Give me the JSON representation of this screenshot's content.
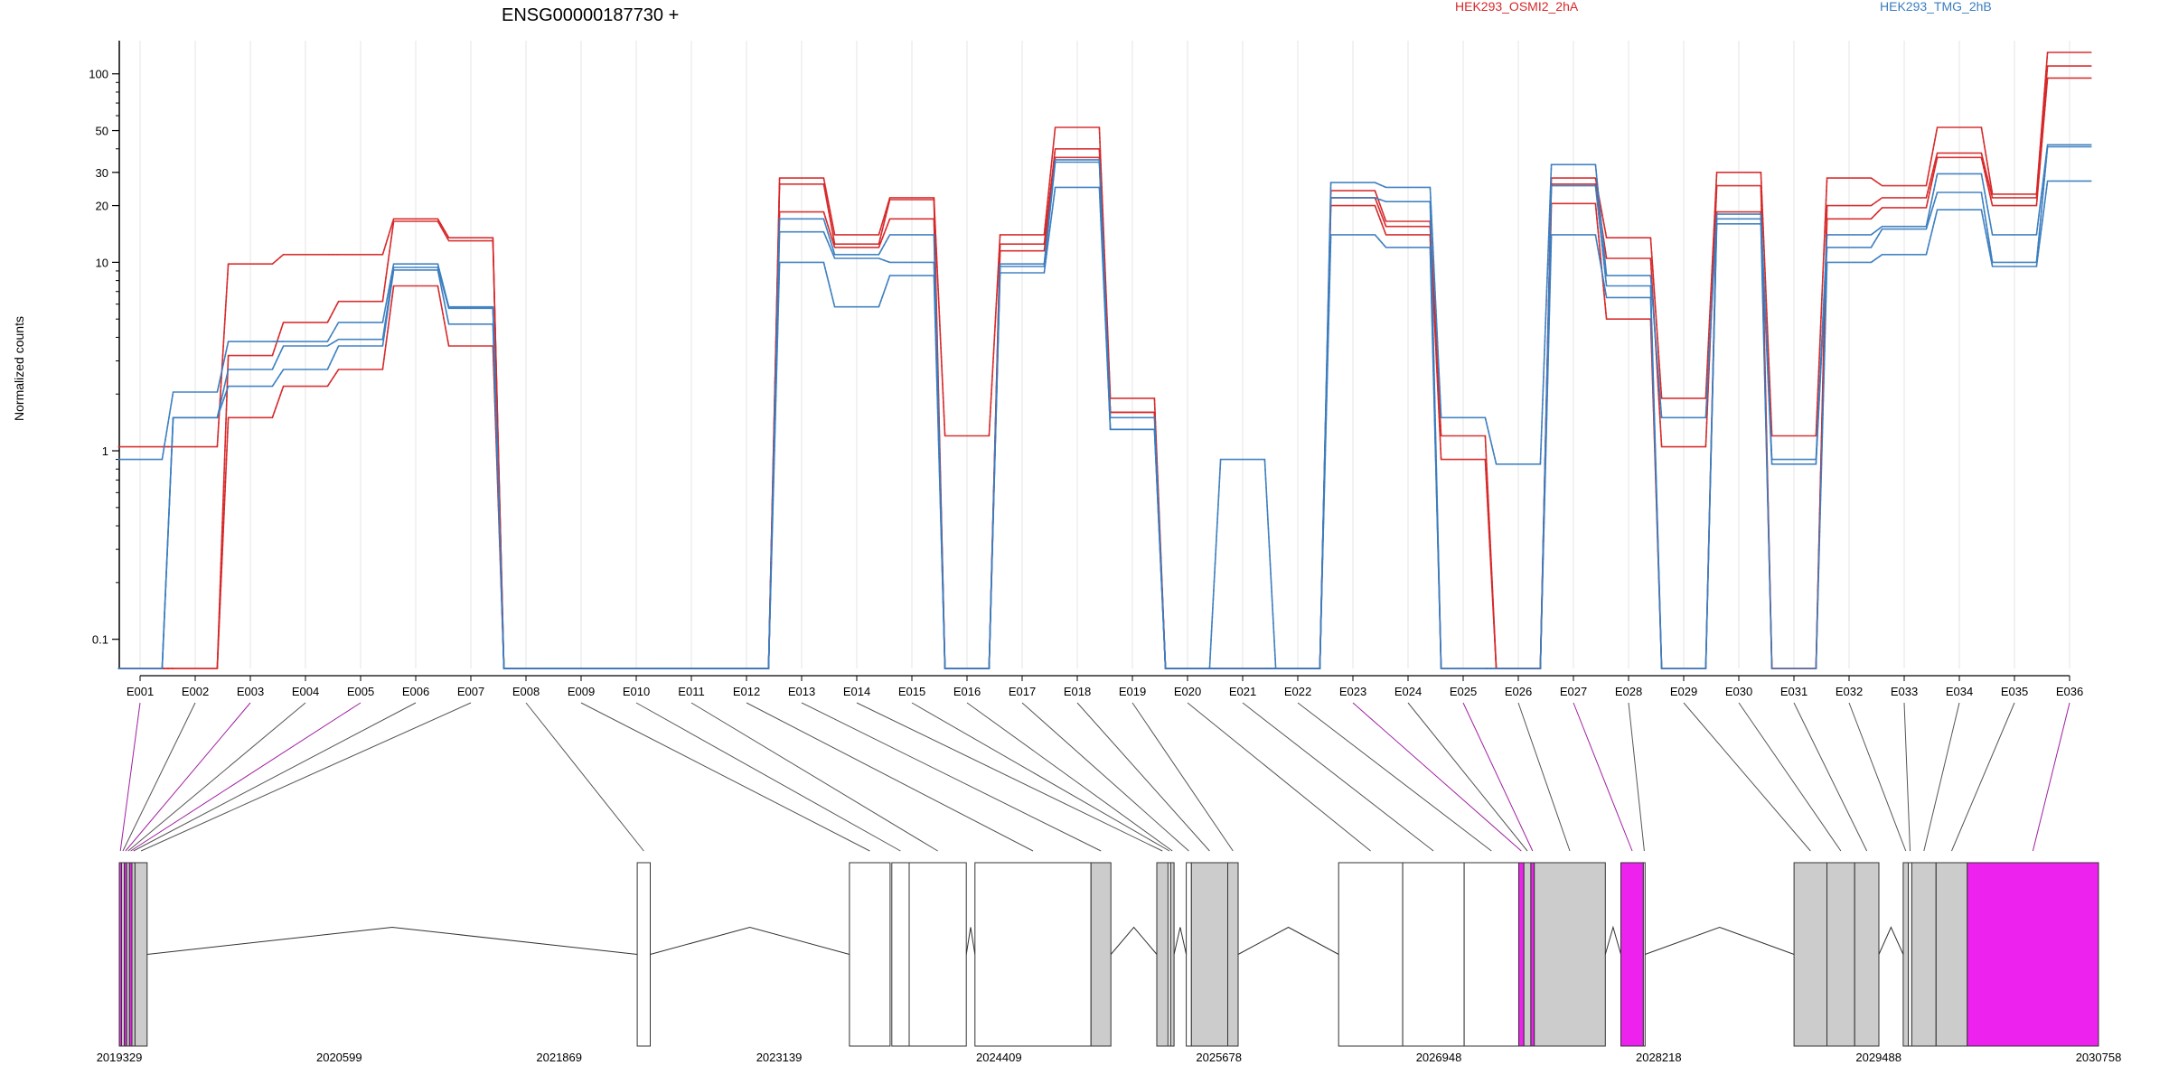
{
  "chart_data": {
    "type": "line",
    "title": "ENSG00000187730 +",
    "ylabel": "Normalized counts",
    "yscale": "log",
    "ylim": [
      0.07,
      150
    ],
    "yticks": [
      {
        "v": 0.1,
        "label": "0.1"
      },
      {
        "v": 1,
        "label": "1"
      },
      {
        "v": 10,
        "label": "10"
      },
      {
        "v": 20,
        "label": "20"
      },
      {
        "v": 30,
        "label": "30"
      },
      {
        "v": 50,
        "label": "50"
      },
      {
        "v": 100,
        "label": "100"
      }
    ],
    "categories": [
      "E001",
      "E002",
      "E003",
      "E004",
      "E005",
      "E006",
      "E007",
      "E008",
      "E009",
      "E010",
      "E011",
      "E012",
      "E013",
      "E014",
      "E015",
      "E016",
      "E017",
      "E018",
      "E019",
      "E020",
      "E021",
      "E022",
      "E023",
      "E024",
      "E025",
      "E026",
      "E027",
      "E028",
      "E029",
      "E030",
      "E031",
      "E032",
      "E033",
      "E034",
      "E035",
      "E036"
    ],
    "colors": {
      "HEK293_OSMI2_2hA": "#d62728",
      "HEK293_TMG_2hB": "#3b7dbf"
    },
    "legend": [
      "HEK293_OSMI2_2hA",
      "HEK293_TMG_2hB"
    ],
    "series": [
      {
        "group": "HEK293_OSMI2_2hA",
        "values": [
          1.05,
          1.05,
          9.8,
          11,
          11,
          17,
          13.5,
          0.07,
          0.07,
          0.07,
          0.07,
          0.07,
          28,
          14,
          22,
          1.2,
          14,
          52,
          1.9,
          0.07,
          0.07,
          0.07,
          24,
          16.5,
          1.2,
          0.07,
          28,
          13.5,
          1.9,
          30,
          1.2,
          28,
          25.5,
          52,
          23,
          130
        ]
      },
      {
        "group": "HEK293_OSMI2_2hA",
        "values": [
          0.07,
          0.07,
          3.2,
          4.8,
          6.2,
          16.5,
          13,
          0.07,
          0.07,
          0.07,
          0.07,
          0.07,
          26,
          12.5,
          21.5,
          0.07,
          12.5,
          40,
          1.6,
          0.07,
          0.07,
          0.07,
          22,
          15.5,
          0.9,
          0.07,
          26,
          10.5,
          1.05,
          25.5,
          0.07,
          20,
          22,
          38,
          22,
          110
        ]
      },
      {
        "group": "HEK293_OSMI2_2hA",
        "values": [
          0.07,
          0.07,
          1.5,
          2.2,
          2.7,
          7.5,
          3.6,
          0.07,
          0.07,
          0.07,
          0.07,
          0.07,
          18.5,
          12,
          17,
          0.07,
          11.5,
          36,
          1.6,
          0.07,
          0.07,
          0.07,
          20,
          14,
          0.07,
          0.07,
          20.5,
          5,
          0.07,
          18.5,
          0.07,
          17,
          19.5,
          36,
          20,
          95
        ]
      },
      {
        "group": "HEK293_TMG_2hB",
        "values": [
          0.9,
          2.05,
          3.8,
          3.8,
          4.8,
          9.8,
          5.8,
          0.07,
          0.07,
          0.07,
          0.07,
          0.07,
          17,
          11,
          14,
          0.07,
          9.8,
          35,
          1.5,
          0.07,
          0.9,
          0.07,
          26.5,
          25,
          1.5,
          0.85,
          33,
          8.5,
          1.5,
          18,
          0.9,
          14,
          15.5,
          29.5,
          14,
          42
        ]
      },
      {
        "group": "HEK293_TMG_2hB",
        "values": [
          0.07,
          1.5,
          2.7,
          3.6,
          3.9,
          9.4,
          5.7,
          0.07,
          0.07,
          0.07,
          0.07,
          0.07,
          14.5,
          10.5,
          10,
          0.07,
          9.5,
          34,
          1.3,
          0.07,
          0.07,
          0.07,
          22,
          21,
          0.07,
          0.07,
          25.5,
          7.5,
          0.07,
          17,
          0.85,
          12,
          15,
          23.5,
          10,
          41
        ]
      },
      {
        "group": "HEK293_TMG_2hB",
        "values": [
          0.07,
          1.5,
          2.2,
          2.7,
          3.6,
          9.1,
          4.7,
          0.07,
          0.07,
          0.07,
          0.07,
          0.07,
          10,
          5.8,
          8.5,
          0.07,
          8.8,
          25,
          1.3,
          0.07,
          0.07,
          0.07,
          14,
          12,
          0.07,
          0.07,
          14,
          6.5,
          0.07,
          16,
          0.07,
          10,
          11,
          19,
          9.5,
          27
        ]
      }
    ],
    "gene_axis": {
      "labels": [
        "2019329",
        "2020599",
        "2021869",
        "2023139",
        "2024409",
        "2025678",
        "2026948",
        "2028218",
        "2029488",
        "2030758"
      ],
      "start": 2019329,
      "end": 2030758
    },
    "exon_colors": {
      "default": "#ffffff",
      "expressed": "#cccccc",
      "highlight": "#ee22ee"
    },
    "exons": [
      {
        "id": "E001",
        "start": 2019329,
        "end": 2019342,
        "fill": "highlight"
      },
      {
        "id": "E002",
        "start": 2019342,
        "end": 2019358,
        "fill": "expressed"
      },
      {
        "id": "E003",
        "start": 2019358,
        "end": 2019372,
        "fill": "highlight"
      },
      {
        "id": "E004",
        "start": 2019372,
        "end": 2019388,
        "fill": "expressed"
      },
      {
        "id": "E005",
        "start": 2019388,
        "end": 2019402,
        "fill": "highlight"
      },
      {
        "id": "E006",
        "start": 2019402,
        "end": 2019420,
        "fill": "expressed"
      },
      {
        "id": "E007",
        "start": 2019420,
        "end": 2019490,
        "fill": "expressed"
      },
      {
        "id": "E008",
        "start": 2022320,
        "end": 2022395,
        "fill": "default"
      },
      {
        "id": "E009",
        "start": 2023545,
        "end": 2023780,
        "fill": "default"
      },
      {
        "id": "E010",
        "start": 2023790,
        "end": 2023890,
        "fill": "default"
      },
      {
        "id": "E011",
        "start": 2023890,
        "end": 2024220,
        "fill": "default"
      },
      {
        "id": "E012",
        "start": 2024270,
        "end": 2024940,
        "fill": "default"
      },
      {
        "id": "E013",
        "start": 2024940,
        "end": 2025055,
        "fill": "expressed"
      },
      {
        "id": "E014",
        "start": 2025320,
        "end": 2025385,
        "fill": "expressed"
      },
      {
        "id": "E015",
        "start": 2025385,
        "end": 2025400,
        "fill": "default"
      },
      {
        "id": "E016",
        "start": 2025400,
        "end": 2025420,
        "fill": "expressed"
      },
      {
        "id": "E017",
        "start": 2025490,
        "end": 2025520,
        "fill": "default"
      },
      {
        "id": "E018",
        "start": 2025520,
        "end": 2025730,
        "fill": "expressed"
      },
      {
        "id": "E019",
        "start": 2025730,
        "end": 2025790,
        "fill": "expressed"
      },
      {
        "id": "E020",
        "start": 2026370,
        "end": 2026740,
        "fill": "default"
      },
      {
        "id": "E021",
        "start": 2026740,
        "end": 2027095,
        "fill": "default"
      },
      {
        "id": "E022",
        "start": 2027095,
        "end": 2027410,
        "fill": "default"
      },
      {
        "id": "E023",
        "start": 2027410,
        "end": 2027440,
        "fill": "highlight"
      },
      {
        "id": "E024",
        "start": 2027440,
        "end": 2027480,
        "fill": "expressed"
      },
      {
        "id": "E025",
        "start": 2027480,
        "end": 2027500,
        "fill": "highlight"
      },
      {
        "id": "E026",
        "start": 2027500,
        "end": 2027910,
        "fill": "expressed"
      },
      {
        "id": "E027",
        "start": 2028000,
        "end": 2028130,
        "fill": "highlight"
      },
      {
        "id": "E028",
        "start": 2028130,
        "end": 2028140,
        "fill": "default"
      },
      {
        "id": "E029",
        "start": 2029000,
        "end": 2029190,
        "fill": "expressed"
      },
      {
        "id": "E030",
        "start": 2029190,
        "end": 2029350,
        "fill": "expressed"
      },
      {
        "id": "E031",
        "start": 2029350,
        "end": 2029490,
        "fill": "expressed"
      },
      {
        "id": "E032",
        "start": 2029630,
        "end": 2029660,
        "fill": "expressed"
      },
      {
        "id": "E033",
        "start": 2029660,
        "end": 2029680,
        "fill": "default"
      },
      {
        "id": "E034",
        "start": 2029680,
        "end": 2029820,
        "fill": "expressed"
      },
      {
        "id": "E035",
        "start": 2029820,
        "end": 2030000,
        "fill": "expressed"
      },
      {
        "id": "E036",
        "start": 2030000,
        "end": 2030758,
        "fill": "highlight"
      }
    ]
  }
}
